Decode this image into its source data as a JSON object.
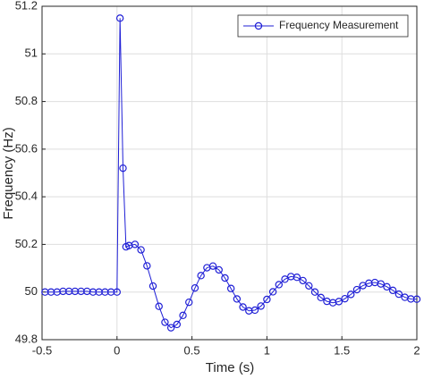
{
  "chart_data": {
    "type": "line",
    "xlabel": "Time (s)",
    "ylabel": "Frequency (Hz)",
    "x": [
      -0.48,
      -0.44,
      -0.4,
      -0.36,
      -0.32,
      -0.28,
      -0.24,
      -0.2,
      -0.16,
      -0.12,
      -0.08,
      -0.04,
      0,
      0.02,
      0.04,
      0.06,
      0.08,
      0.12,
      0.16,
      0.2,
      0.24,
      0.28,
      0.32,
      0.36,
      0.4,
      0.44,
      0.48,
      0.52,
      0.56,
      0.6,
      0.64,
      0.68,
      0.72,
      0.76,
      0.8,
      0.84,
      0.88,
      0.92,
      0.96,
      1,
      1.04,
      1.08,
      1.12,
      1.16,
      1.2,
      1.24,
      1.28,
      1.32,
      1.36,
      1.4,
      1.44,
      1.48,
      1.52,
      1.56,
      1.6,
      1.64,
      1.68,
      1.72,
      1.76,
      1.8,
      1.84,
      1.88,
      1.92,
      1.96,
      2
    ],
    "series": [
      {
        "name": "Frequency Measurement",
        "color": "#1f1fd6",
        "values": [
          50,
          50,
          50,
          50.003,
          50.003,
          50.003,
          50.003,
          50.003,
          50,
          50,
          50,
          50,
          50,
          51.15,
          50.52,
          50.19,
          50.195,
          50.2,
          50.177,
          50.11,
          50.025,
          49.94,
          49.873,
          49.85,
          49.864,
          49.902,
          49.957,
          50.017,
          50.069,
          50.102,
          50.109,
          50.093,
          50.059,
          50.015,
          49.971,
          49.937,
          49.921,
          49.924,
          49.941,
          49.969,
          50.001,
          50.031,
          50.054,
          50.065,
          50.062,
          50.048,
          50.026,
          50,
          49.977,
          49.961,
          49.955,
          49.96,
          49.972,
          49.99,
          50.01,
          50.027,
          50.037,
          50.04,
          50.034,
          50.022,
          50.007,
          49.991,
          49.978,
          49.971,
          49.97
        ]
      }
    ],
    "xlim": [
      -0.5,
      2
    ],
    "xticks": [
      -0.5,
      0,
      0.5,
      1,
      1.5,
      2
    ],
    "ylim": [
      49.8,
      51.2
    ],
    "yticks": [
      49.8,
      50,
      50.2,
      50.4,
      50.6,
      50.8,
      51,
      51.2
    ],
    "grid": true,
    "legend": "upper right"
  }
}
